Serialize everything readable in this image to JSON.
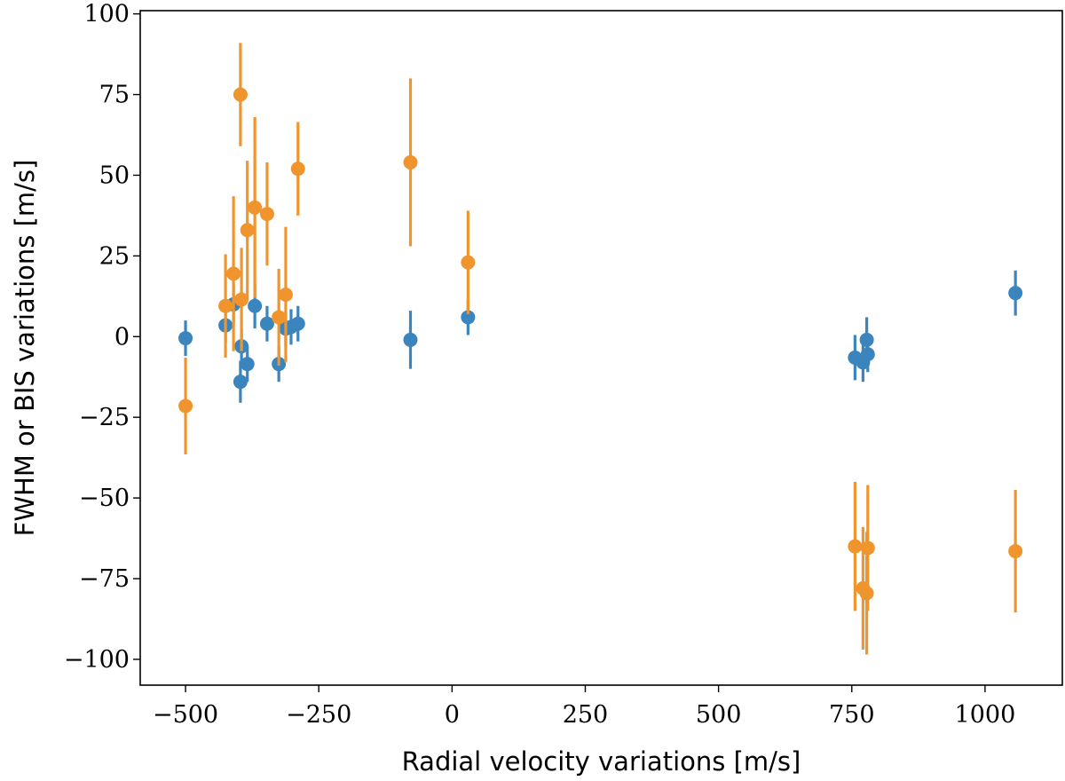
{
  "chart_data": {
    "type": "scatter",
    "xlabel": "Radial velocity variations [m/s]",
    "ylabel": "FWHM or BIS variations [m/s]",
    "xlim": [
      -585,
      1145
    ],
    "ylim": [
      -108,
      101
    ],
    "xticks": [
      -500,
      -250,
      0,
      250,
      500,
      750,
      1000
    ],
    "xtick_labels": [
      "−500",
      "−250",
      "0",
      "250",
      "500",
      "750",
      "1000"
    ],
    "yticks": [
      -100,
      -75,
      -50,
      -25,
      0,
      25,
      50,
      75,
      100
    ],
    "ytick_labels": [
      "−100",
      "−75",
      "−50",
      "−25",
      "0",
      "25",
      "50",
      "75",
      "100"
    ],
    "grid": false,
    "error_bars": true,
    "series": [
      {
        "color": "#3b85be",
        "points": [
          {
            "x": -500,
            "y": -0.5,
            "err": 5.5
          },
          {
            "x": -425,
            "y": 3.5,
            "err": 5.5
          },
          {
            "x": -410,
            "y": 10,
            "err": 6
          },
          {
            "x": -397,
            "y": -14,
            "err": 6.5
          },
          {
            "x": -395,
            "y": -3,
            "err": 5.5
          },
          {
            "x": -384,
            "y": -8.5,
            "err": 5.5
          },
          {
            "x": -370,
            "y": 9.5,
            "err": 7
          },
          {
            "x": -347,
            "y": 4,
            "err": 5.5
          },
          {
            "x": -325,
            "y": -8.5,
            "err": 5.5
          },
          {
            "x": -312,
            "y": 2.5,
            "err": 5.5
          },
          {
            "x": -302,
            "y": 3,
            "err": 5.5
          },
          {
            "x": -289,
            "y": 4,
            "err": 5.5
          },
          {
            "x": -78,
            "y": -1,
            "err": 9
          },
          {
            "x": 30,
            "y": 6,
            "err": 5.5
          },
          {
            "x": 756,
            "y": -6.5,
            "err": 7
          },
          {
            "x": 771,
            "y": -8,
            "err": 6
          },
          {
            "x": 778,
            "y": -1,
            "err": 7
          },
          {
            "x": 780,
            "y": -5.5,
            "err": 5.5
          },
          {
            "x": 1057,
            "y": 13.5,
            "err": 7
          }
        ]
      },
      {
        "color": "#f0952e",
        "points": [
          {
            "x": -500,
            "y": -21.5,
            "err": 15
          },
          {
            "x": -425,
            "y": 9.5,
            "err": 16
          },
          {
            "x": -410,
            "y": 19.5,
            "err": 24
          },
          {
            "x": -397,
            "y": 75,
            "err": 16
          },
          {
            "x": -395,
            "y": 11.5,
            "err": 16
          },
          {
            "x": -384,
            "y": 33,
            "err": 21.5
          },
          {
            "x": -370,
            "y": 40,
            "err": 28
          },
          {
            "x": -347,
            "y": 38,
            "err": 16
          },
          {
            "x": -325,
            "y": 6,
            "err": 15
          },
          {
            "x": -312,
            "y": 13,
            "err": 21
          },
          {
            "x": -289,
            "y": 52,
            "err": 14.5
          },
          {
            "x": -78,
            "y": 54,
            "err": 26
          },
          {
            "x": 30,
            "y": 23,
            "err": 16
          },
          {
            "x": 756,
            "y": -65,
            "err": 20
          },
          {
            "x": 771,
            "y": -78,
            "err": 19
          },
          {
            "x": 778,
            "y": -79.5,
            "err": 19
          },
          {
            "x": 780,
            "y": -65.5,
            "err": 19.5
          },
          {
            "x": 1057,
            "y": -66.5,
            "err": 19
          }
        ]
      }
    ]
  }
}
